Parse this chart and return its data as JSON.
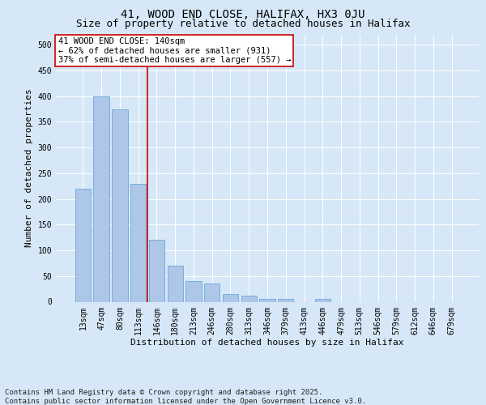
{
  "title1": "41, WOOD END CLOSE, HALIFAX, HX3 0JU",
  "title2": "Size of property relative to detached houses in Halifax",
  "xlabel": "Distribution of detached houses by size in Halifax",
  "ylabel": "Number of detached properties",
  "categories": [
    "13sqm",
    "47sqm",
    "80sqm",
    "113sqm",
    "146sqm",
    "180sqm",
    "213sqm",
    "246sqm",
    "280sqm",
    "313sqm",
    "346sqm",
    "379sqm",
    "413sqm",
    "446sqm",
    "479sqm",
    "513sqm",
    "546sqm",
    "579sqm",
    "612sqm",
    "646sqm",
    "679sqm"
  ],
  "values": [
    220,
    400,
    375,
    230,
    120,
    70,
    40,
    35,
    15,
    12,
    5,
    5,
    0,
    5,
    0,
    0,
    0,
    0,
    0,
    0,
    0
  ],
  "bar_color": "#aec6e8",
  "bar_edge_color": "#5a9fd4",
  "annotation_box_text": "41 WOOD END CLOSE: 140sqm\n← 62% of detached houses are smaller (931)\n37% of semi-detached houses are larger (557) →",
  "annotation_box_color": "#ffffff",
  "annotation_box_edge_color": "#cc0000",
  "vline_x": 3.5,
  "vline_color": "#cc0000",
  "bg_color": "#d6e8f7",
  "plot_bg_color": "#d6e8f7",
  "footer_line1": "Contains HM Land Registry data © Crown copyright and database right 2025.",
  "footer_line2": "Contains public sector information licensed under the Open Government Licence v3.0.",
  "ylim": [
    0,
    520
  ],
  "yticks": [
    0,
    50,
    100,
    150,
    200,
    250,
    300,
    350,
    400,
    450,
    500
  ],
  "grid_color": "#ffffff",
  "title_fontsize": 10,
  "subtitle_fontsize": 9,
  "axis_label_fontsize": 8,
  "tick_fontsize": 7,
  "annotation_fontsize": 7.5,
  "footer_fontsize": 6.5
}
